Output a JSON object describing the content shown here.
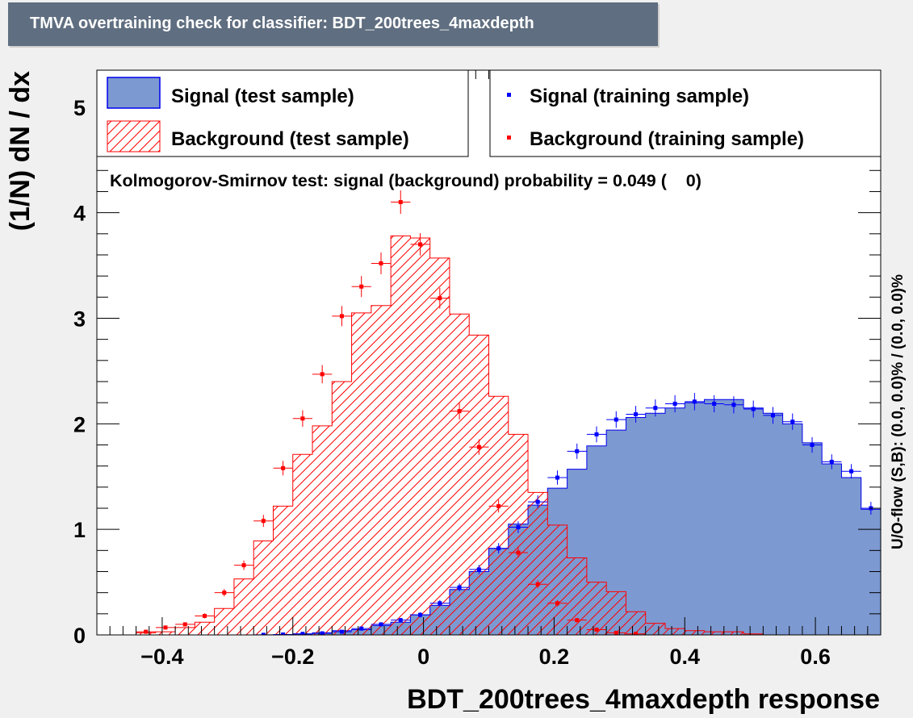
{
  "header": {
    "title": "TMVA overtraining check for classifier: BDT_200trees_4maxdepth"
  },
  "chart_data": {
    "type": "histogram",
    "title": "TMVA overtraining check for classifier: BDT_200trees_4maxdepth",
    "xlabel": "BDT_200trees_4maxdepth response",
    "ylabel": "(1/N) dN / dx",
    "right_label": "U/O-flow (S,B): (0.0, 0.0)% / (0.0, 0.0)%",
    "annotation": "Kolmogorov-Smirnov test: signal (background) probability = 0.049 (    0)",
    "xlim": [
      -0.5,
      0.7
    ],
    "ylim": [
      0,
      5.35
    ],
    "x_ticks": [
      {
        "v": -0.4,
        "label": "−0.4"
      },
      {
        "v": -0.2,
        "label": "−0.2"
      },
      {
        "v": 0,
        "label": "0"
      },
      {
        "v": 0.2,
        "label": "0.2"
      },
      {
        "v": 0.4,
        "label": "0.4"
      },
      {
        "v": 0.6,
        "label": "0.6"
      }
    ],
    "y_ticks": [
      {
        "v": 0,
        "label": "0"
      },
      {
        "v": 1,
        "label": "1"
      },
      {
        "v": 2,
        "label": "2"
      },
      {
        "v": 3,
        "label": "3"
      },
      {
        "v": 4,
        "label": "4"
      },
      {
        "v": 5,
        "label": "5"
      }
    ],
    "bin_low": -0.5,
    "bin_width": 0.03,
    "legend": {
      "placement": "top",
      "left": [
        {
          "name": "Signal (test sample)",
          "style": "filled",
          "color": "#7d99d1"
        },
        {
          "name": "Background (test sample)",
          "style": "hatched",
          "color": "#ff0000"
        }
      ],
      "right": [
        {
          "name": "Signal (training sample)",
          "style": "marker",
          "color": "#0000ff"
        },
        {
          "name": "Background (training sample)",
          "style": "marker",
          "color": "#ff0000"
        }
      ]
    },
    "series": [
      {
        "name": "Signal (test sample)",
        "color": "#7d99d1",
        "line_color": "#0000ee",
        "values": [
          0,
          0,
          0,
          0,
          0,
          0,
          0,
          0,
          0,
          0,
          0.01,
          0.02,
          0.04,
          0.05,
          0.09,
          0.12,
          0.19,
          0.28,
          0.43,
          0.6,
          0.82,
          1.05,
          1.23,
          1.39,
          1.57,
          1.79,
          1.94,
          2.06,
          2.1,
          2.15,
          2.2,
          2.23,
          2.23,
          2.15,
          2.1,
          2.0,
          1.82,
          1.62,
          1.49,
          1.19,
          0.82,
          0.5,
          0.3,
          0.17,
          0.08,
          0.03,
          0.01,
          0.005,
          0,
          0,
          0,
          0,
          0,
          0,
          0,
          0,
          0,
          0,
          0,
          0
        ]
      },
      {
        "name": "Background (test sample)",
        "color": "#ff0000",
        "values": [
          0,
          0,
          0.02,
          0.03,
          0.07,
          0.12,
          0.25,
          0.53,
          0.89,
          1.22,
          1.71,
          1.98,
          2.4,
          3.05,
          3.12,
          3.78,
          3.76,
          3.57,
          3.04,
          2.84,
          2.26,
          1.9,
          1.35,
          1.04,
          0.73,
          0.5,
          0.41,
          0.22,
          0.11,
          0.06,
          0.04,
          0.03,
          0.03,
          0.01,
          0,
          0,
          0,
          0,
          0,
          0,
          0,
          0,
          0,
          0,
          0,
          0,
          0,
          0,
          0,
          0,
          0,
          0,
          0,
          0,
          0,
          0,
          0,
          0,
          0,
          0
        ]
      },
      {
        "name": "Signal (training sample)",
        "color": "#0000ff",
        "values": [
          0,
          0,
          0,
          0,
          0,
          0,
          0,
          0,
          0.001,
          0.004,
          0.01,
          0.015,
          0.03,
          0.06,
          0.1,
          0.14,
          0.19,
          0.3,
          0.45,
          0.62,
          0.82,
          1.02,
          1.26,
          1.49,
          1.74,
          1.9,
          2.04,
          2.09,
          2.15,
          2.19,
          2.21,
          2.19,
          2.18,
          2.14,
          2.08,
          2.02,
          1.8,
          1.64,
          1.55,
          1.2,
          0.84,
          0.49,
          0.29,
          0.16,
          0.08,
          0.03,
          0.01,
          0.005,
          0,
          0,
          0,
          0,
          0,
          0,
          0,
          0,
          0,
          0,
          0,
          0
        ]
      },
      {
        "name": "Background (training sample)",
        "color": "#ff0000",
        "values": [
          0,
          0,
          0.03,
          0.07,
          0.1,
          0.18,
          0.4,
          0.66,
          1.08,
          1.58,
          2.05,
          2.47,
          3.02,
          3.3,
          3.52,
          4.1,
          3.7,
          3.19,
          2.12,
          1.78,
          1.22,
          0.78,
          0.48,
          0.3,
          0.14,
          0.05,
          0.02,
          0.01,
          0,
          0,
          0,
          0,
          0,
          0,
          0,
          0,
          0,
          0,
          0,
          0,
          0,
          0,
          0,
          0,
          0,
          0,
          0,
          0,
          0,
          0,
          0,
          0,
          0,
          0,
          0,
          0,
          0,
          0,
          0,
          0
        ]
      }
    ]
  }
}
